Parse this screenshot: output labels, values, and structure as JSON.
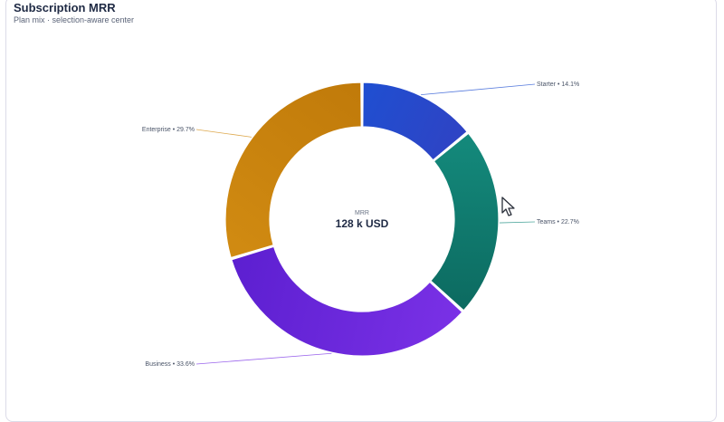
{
  "header": {
    "title": "Subscription MRR",
    "subtitle": "Plan mix · selection-aware center"
  },
  "center": {
    "caption": "MRR",
    "value": "128 k USD"
  },
  "icons": {
    "pointer": "mouse-pointer-icon"
  },
  "chart_data": {
    "type": "pie",
    "variant": "donut",
    "start_angle_deg": 0,
    "direction": "clockwise",
    "slices": [
      {
        "label": "Starter • 14.1%",
        "name": "Starter",
        "value": 14.1,
        "color": "#1f4fd1",
        "color_dark": "#2f43c4",
        "label_side": "right"
      },
      {
        "label": "Teams • 22.7%",
        "name": "Teams",
        "value": 22.7,
        "color": "#148a7c",
        "color_dark": "#0c6a60",
        "label_side": "right"
      },
      {
        "label": "Business • 33.6%",
        "name": "Business",
        "value": 33.6,
        "color": "#7a31e6",
        "color_dark": "#5c1fd0",
        "label_side": "left"
      },
      {
        "label": "Enterprise • 29.7%",
        "name": "Enterprise",
        "value": 29.7,
        "color": "#d18b12",
        "color_dark": "#c07a0a",
        "label_side": "left"
      }
    ]
  }
}
